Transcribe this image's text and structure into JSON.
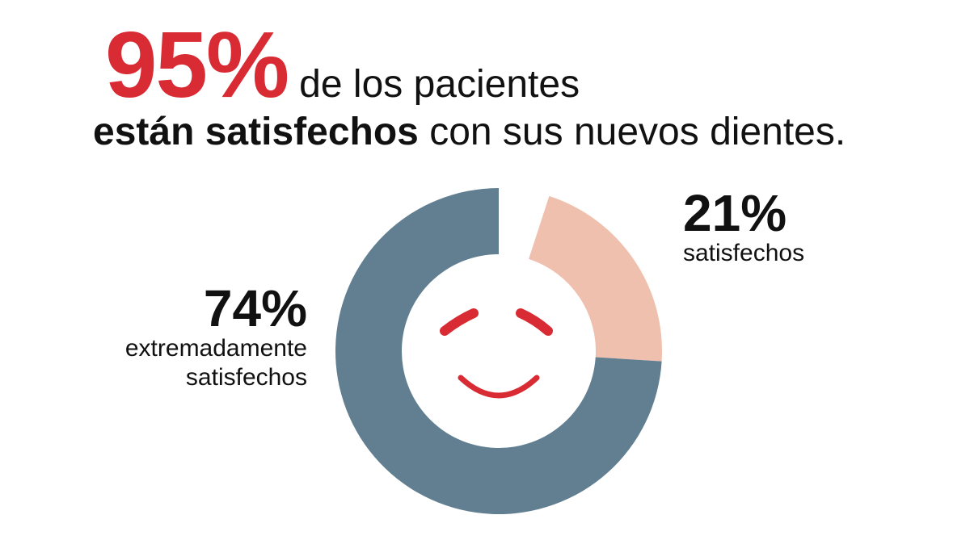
{
  "headline": {
    "big_percent": "95%",
    "line1_rest": "de los pacientes",
    "line2_bold": "están satisfechos",
    "line2_rest": "con sus nuevos dientes."
  },
  "stats": {
    "left": {
      "value": "74%",
      "label_line1": "extremadamente",
      "label_line2": "satisfechos"
    },
    "right": {
      "value": "21%",
      "label_line1": "satisfechos"
    }
  },
  "colors": {
    "accent": "#d92b33",
    "extremely_satisfied": "#617f91",
    "satisfied": "#f0c0af",
    "text": "#111111"
  },
  "icons": {
    "center": "smiley-face-icon"
  },
  "chart_data": {
    "type": "pie",
    "categories": [
      "extremadamente satisfechos",
      "satisfechos"
    ],
    "values": [
      74,
      21
    ],
    "labels": [
      "74%",
      "21%"
    ],
    "colors": [
      "#617f91",
      "#f0c0af"
    ],
    "hole": true
  }
}
